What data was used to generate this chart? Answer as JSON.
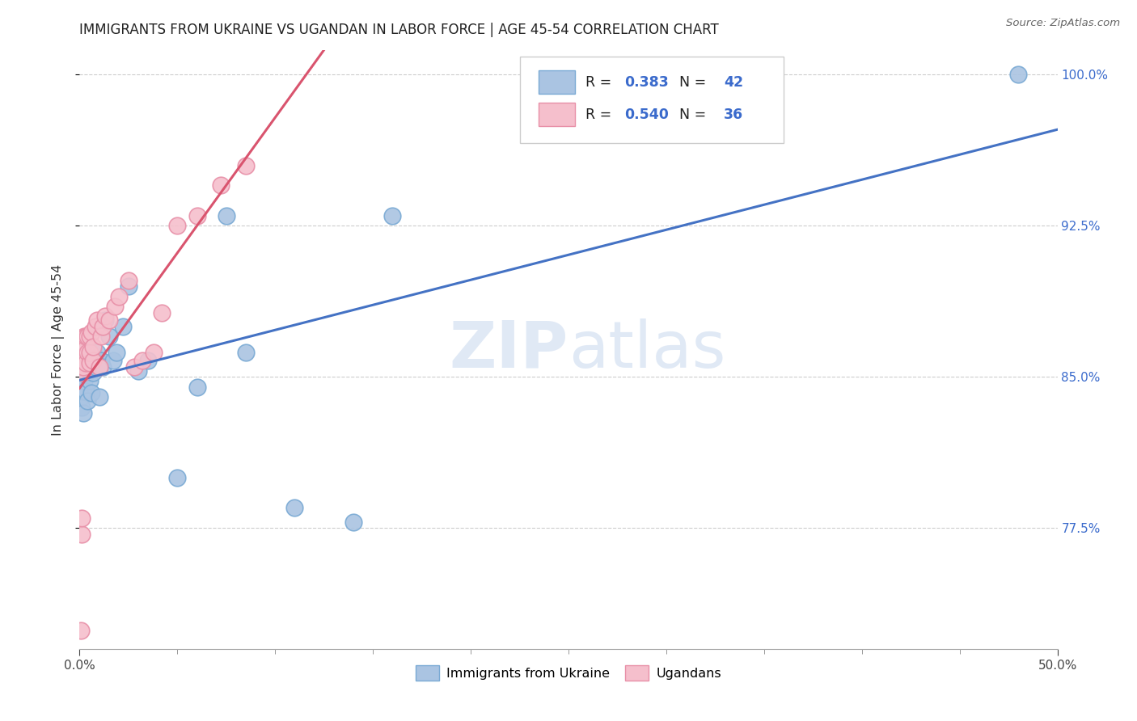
{
  "title": "IMMIGRANTS FROM UKRAINE VS UGANDAN IN LABOR FORCE | AGE 45-54 CORRELATION CHART",
  "source": "Source: ZipAtlas.com",
  "ylabel": "In Labor Force | Age 45-54",
  "xmin": 0.0,
  "xmax": 0.5,
  "ymin": 0.715,
  "ymax": 1.012,
  "yticks": [
    0.775,
    0.85,
    0.925,
    1.0
  ],
  "ytick_labels": [
    "77.5%",
    "85.0%",
    "92.5%",
    "100.0%"
  ],
  "xtick_left_label": "0.0%",
  "xtick_right_label": "50.0%",
  "ukraine_color": "#aac4e2",
  "ukraine_edge": "#7aaad4",
  "ugandan_color": "#f5bfcc",
  "ugandan_edge": "#e890a8",
  "ukraine_R": 0.383,
  "ukraine_N": 42,
  "ugandan_R": 0.54,
  "ugandan_N": 36,
  "legend_R_color": "#3b6bcc",
  "watermark_zip": "ZIP",
  "watermark_atlas": "atlas",
  "ukraine_line_color": "#4472c4",
  "ugandan_line_color": "#d9546e",
  "background_color": "#ffffff",
  "grid_color": "#cccccc",
  "ukraine_x": [
    0.0005,
    0.001,
    0.001,
    0.0015,
    0.002,
    0.002,
    0.002,
    0.0025,
    0.003,
    0.003,
    0.003,
    0.004,
    0.004,
    0.004,
    0.005,
    0.005,
    0.005,
    0.006,
    0.006,
    0.007,
    0.007,
    0.008,
    0.009,
    0.01,
    0.011,
    0.012,
    0.013,
    0.015,
    0.017,
    0.019,
    0.022,
    0.025,
    0.03,
    0.035,
    0.05,
    0.06,
    0.075,
    0.085,
    0.11,
    0.14,
    0.16,
    0.48
  ],
  "ukraine_y": [
    0.848,
    0.84,
    0.835,
    0.852,
    0.843,
    0.858,
    0.832,
    0.848,
    0.855,
    0.862,
    0.843,
    0.838,
    0.852,
    0.862,
    0.848,
    0.855,
    0.862,
    0.842,
    0.858,
    0.852,
    0.862,
    0.855,
    0.862,
    0.84,
    0.858,
    0.855,
    0.878,
    0.87,
    0.858,
    0.862,
    0.875,
    0.895,
    0.853,
    0.858,
    0.8,
    0.845,
    0.93,
    0.862,
    0.785,
    0.778,
    0.93,
    1.0
  ],
  "ugandan_x": [
    0.0005,
    0.001,
    0.001,
    0.0015,
    0.002,
    0.002,
    0.0025,
    0.003,
    0.003,
    0.003,
    0.004,
    0.004,
    0.005,
    0.005,
    0.005,
    0.006,
    0.007,
    0.007,
    0.008,
    0.009,
    0.01,
    0.011,
    0.012,
    0.013,
    0.015,
    0.018,
    0.02,
    0.025,
    0.028,
    0.032,
    0.038,
    0.042,
    0.05,
    0.06,
    0.072,
    0.085
  ],
  "ugandan_y": [
    0.724,
    0.772,
    0.78,
    0.852,
    0.855,
    0.862,
    0.87,
    0.857,
    0.864,
    0.87,
    0.862,
    0.87,
    0.857,
    0.862,
    0.87,
    0.872,
    0.858,
    0.865,
    0.875,
    0.878,
    0.855,
    0.87,
    0.875,
    0.88,
    0.878,
    0.885,
    0.89,
    0.898,
    0.855,
    0.858,
    0.862,
    0.882,
    0.925,
    0.93,
    0.945,
    0.955
  ]
}
